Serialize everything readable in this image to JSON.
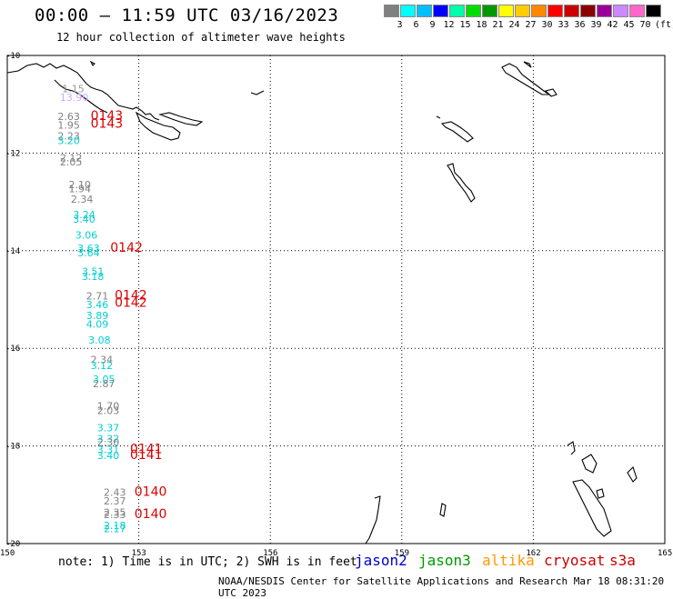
{
  "header": {
    "title": "00:00 – 11:59 UTC 03/16/2023",
    "subtitle": "12 hour collection of altimeter wave heights"
  },
  "legend": {
    "colors": [
      "#808080",
      "#00ffff",
      "#00bfff",
      "#0000ff",
      "#00ffaa",
      "#00dd00",
      "#009900",
      "#ffff00",
      "#ffcc00",
      "#ff8800",
      "#ff0000",
      "#cc0000",
      "#8b0000",
      "#990099",
      "#cc88ff",
      "#ff66cc",
      "#000000"
    ],
    "labels": [
      "3",
      "6",
      "9",
      "12",
      "15",
      "18",
      "21",
      "24",
      "27",
      "30",
      "33",
      "36",
      "39",
      "42",
      "45",
      "70"
    ],
    "unit": "(ft)"
  },
  "map": {
    "lat_labels": [
      "-10",
      "-12",
      "-14",
      "-16",
      "-18",
      "-20"
    ],
    "lon_labels": [
      "150",
      "153",
      "156",
      "159",
      "162",
      "165"
    ],
    "swh_points": [
      {
        "v": "1.15",
        "c": "#9a9a9a",
        "lon": 151.25,
        "lat": -10.75
      },
      {
        "v": "13.90",
        "c": "#ccaaff",
        "lon": 151.2,
        "lat": -10.93
      },
      {
        "v": "2.63",
        "c": "#808080",
        "lon": 151.15,
        "lat": -11.32
      },
      {
        "v": "1.95",
        "c": "#808080",
        "lon": 151.15,
        "lat": -11.5
      },
      {
        "v": "2.23",
        "c": "#808080",
        "lon": 151.15,
        "lat": -11.72
      },
      {
        "v": "3.20",
        "c": "#00d0d0",
        "lon": 151.15,
        "lat": -11.82
      },
      {
        "v": "2.12",
        "c": "#808080",
        "lon": 151.2,
        "lat": -12.17
      },
      {
        "v": "2.05",
        "c": "#808080",
        "lon": 151.2,
        "lat": -12.25
      },
      {
        "v": "2.10",
        "c": "#808080",
        "lon": 151.4,
        "lat": -12.72
      },
      {
        "v": "1.94",
        "c": "#808080",
        "lon": 151.4,
        "lat": -12.8
      },
      {
        "v": "2.34",
        "c": "#808080",
        "lon": 151.45,
        "lat": -13.02
      },
      {
        "v": "3.24",
        "c": "#00d0d0",
        "lon": 151.5,
        "lat": -13.33
      },
      {
        "v": "3.40",
        "c": "#00d0d0",
        "lon": 151.5,
        "lat": -13.43
      },
      {
        "v": "3.06",
        "c": "#00d0d0",
        "lon": 151.55,
        "lat": -13.75
      },
      {
        "v": "3.63",
        "c": "#00d0d0",
        "lon": 151.6,
        "lat": -14.02
      },
      {
        "v": "3.64",
        "c": "#00d0d0",
        "lon": 151.6,
        "lat": -14.12
      },
      {
        "v": "3.51",
        "c": "#00d0d0",
        "lon": 151.7,
        "lat": -14.5
      },
      {
        "v": "3.18",
        "c": "#00d0d0",
        "lon": 151.7,
        "lat": -14.6
      },
      {
        "v": "2.71",
        "c": "#808080",
        "lon": 151.8,
        "lat": -15.0
      },
      {
        "v": "3.46",
        "c": "#00d0d0",
        "lon": 151.8,
        "lat": -15.18
      },
      {
        "v": "3.89",
        "c": "#00d0d0",
        "lon": 151.8,
        "lat": -15.4
      },
      {
        "v": "4.09",
        "c": "#00d0d0",
        "lon": 151.8,
        "lat": -15.58
      },
      {
        "v": "3.08",
        "c": "#00d0d0",
        "lon": 151.85,
        "lat": -15.9
      },
      {
        "v": "2.34",
        "c": "#808080",
        "lon": 151.9,
        "lat": -16.3
      },
      {
        "v": "3.12",
        "c": "#00d0d0",
        "lon": 151.9,
        "lat": -16.42
      },
      {
        "v": "3.05",
        "c": "#00d0d0",
        "lon": 151.95,
        "lat": -16.7
      },
      {
        "v": "2.87",
        "c": "#808080",
        "lon": 151.95,
        "lat": -16.8
      },
      {
        "v": "1.70",
        "c": "#808080",
        "lon": 152.05,
        "lat": -17.25
      },
      {
        "v": "2.03",
        "c": "#808080",
        "lon": 152.05,
        "lat": -17.35
      },
      {
        "v": "3.37",
        "c": "#00d0d0",
        "lon": 152.05,
        "lat": -17.7
      },
      {
        "v": "3.32",
        "c": "#00d0d0",
        "lon": 152.05,
        "lat": -17.92
      },
      {
        "v": "2.30",
        "c": "#808080",
        "lon": 152.05,
        "lat": -18.0
      },
      {
        "v": "3.31",
        "c": "#00d0d0",
        "lon": 152.05,
        "lat": -18.15
      },
      {
        "v": "3.40",
        "c": "#00d0d0",
        "lon": 152.05,
        "lat": -18.27
      },
      {
        "v": "2.43",
        "c": "#808080",
        "lon": 152.2,
        "lat": -19.02
      },
      {
        "v": "2.37",
        "c": "#808080",
        "lon": 152.2,
        "lat": -19.2
      },
      {
        "v": "2.35",
        "c": "#808080",
        "lon": 152.2,
        "lat": -19.43
      },
      {
        "v": "2.33",
        "c": "#808080",
        "lon": 152.2,
        "lat": -19.48
      },
      {
        "v": "2.18",
        "c": "#00d0d0",
        "lon": 152.2,
        "lat": -19.7
      },
      {
        "v": "2.17",
        "c": "#00d0d0",
        "lon": 152.2,
        "lat": -19.77
      }
    ],
    "time_labels": [
      {
        "v": "0143",
        "lon": 151.9,
        "lat": -11.32
      },
      {
        "v": "0143",
        "lon": 151.9,
        "lat": -11.48
      },
      {
        "v": "0142",
        "lon": 152.35,
        "lat": -14.02
      },
      {
        "v": "0142",
        "lon": 152.45,
        "lat": -15.0
      },
      {
        "v": "0142",
        "lon": 152.45,
        "lat": -15.15
      },
      {
        "v": "0141",
        "lon": 152.8,
        "lat": -18.15
      },
      {
        "v": "0141",
        "lon": 152.8,
        "lat": -18.27
      },
      {
        "v": "0140",
        "lon": 152.9,
        "lat": -19.02
      },
      {
        "v": "0140",
        "lon": 152.9,
        "lat": -19.48
      }
    ]
  },
  "footer": {
    "note": "note: 1) Time is in UTC; 2) SWH is in feet",
    "satellites": [
      {
        "name": "jason2",
        "color": "#0000cc"
      },
      {
        "name": "jason3",
        "color": "#009900"
      },
      {
        "name": "altika",
        "color": "#ff9900"
      },
      {
        "name": "cryosat",
        "color": "#cc0000"
      },
      {
        "name": "s3a",
        "color": "#cc0000"
      }
    ],
    "credit": "NOAA/NESDIS Center for Satellite Applications and Research   Mar 18 08:31:20 UTC 2023"
  }
}
